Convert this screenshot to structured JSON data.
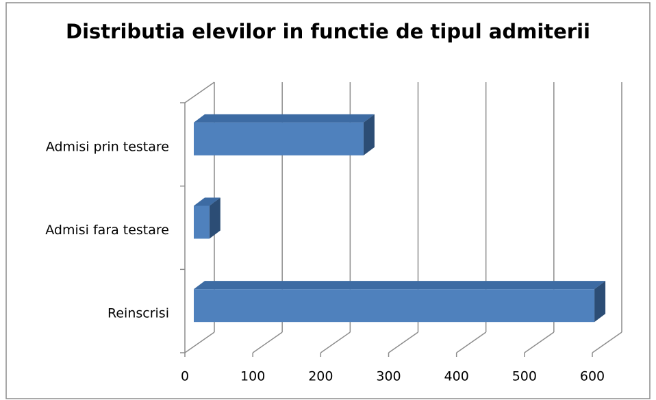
{
  "chart_data": {
    "type": "bar3d",
    "orientation": "horizontal",
    "title": "Distributia elevilor in functie de tipul admiterii",
    "categories": [
      "Reinscrisi",
      "Admisi fara testare",
      "Admisi prin testare"
    ],
    "values": [
      590,
      23,
      250
    ],
    "color": "#4f81bd",
    "xlim": [
      0,
      600
    ],
    "xticks": [
      0,
      100,
      200,
      300,
      400,
      500,
      600
    ],
    "grid": true
  }
}
